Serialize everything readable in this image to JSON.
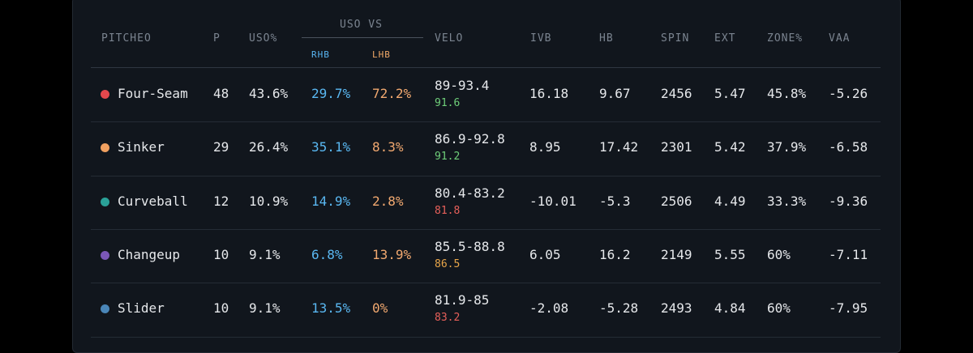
{
  "table": {
    "columns": {
      "pitch": "PITCHEO",
      "p": "P",
      "usage": "USO%",
      "usage_vs": "USO VS",
      "rhb": "RHB",
      "lhb": "LHB",
      "velo": "VELO",
      "ivb": "IVB",
      "hb": "HB",
      "spin": "SPIN",
      "ext": "EXT",
      "zone": "ZONE%",
      "vaa": "VAA"
    },
    "rows": [
      {
        "pitch": "Four-Seam",
        "color": "#e5484d",
        "p": "48",
        "usage": "43.6%",
        "rhb": "29.7%",
        "lhb": "72.2%",
        "velo": "89-93.4",
        "velo_avg": "91.6",
        "velo_avg_color": "#6fcf7a",
        "ivb": "16.18",
        "hb": "9.67",
        "spin": "2456",
        "ext": "5.47",
        "zone": "45.8%",
        "vaa": "-5.26"
      },
      {
        "pitch": "Sinker",
        "color": "#f0a060",
        "p": "29",
        "usage": "26.4%",
        "rhb": "35.1%",
        "lhb": "8.3%",
        "velo": "86.9-92.8",
        "velo_avg": "91.2",
        "velo_avg_color": "#6fcf7a",
        "ivb": "8.95",
        "hb": "17.42",
        "spin": "2301",
        "ext": "5.42",
        "zone": "37.9%",
        "vaa": "-6.58"
      },
      {
        "pitch": "Curveball",
        "color": "#2aa198",
        "p": "12",
        "usage": "10.9%",
        "rhb": "14.9%",
        "lhb": "2.8%",
        "velo": "80.4-83.2",
        "velo_avg": "81.8",
        "velo_avg_color": "#e8605a",
        "ivb": "-10.01",
        "hb": "-5.3",
        "spin": "2506",
        "ext": "4.49",
        "zone": "33.3%",
        "vaa": "-9.36"
      },
      {
        "pitch": "Changeup",
        "color": "#7b57b8",
        "p": "10",
        "usage": "9.1%",
        "rhb": "6.8%",
        "lhb": "13.9%",
        "velo": "85.5-88.8",
        "velo_avg": "86.5",
        "velo_avg_color": "#e8a64a",
        "ivb": "6.05",
        "hb": "16.2",
        "spin": "2149",
        "ext": "5.55",
        "zone": "60%",
        "vaa": "-7.11"
      },
      {
        "pitch": "Slider",
        "color": "#4a86b8",
        "p": "10",
        "usage": "9.1%",
        "rhb": "13.5%",
        "lhb": "0%",
        "velo": "81.9-85",
        "velo_avg": "83.2",
        "velo_avg_color": "#e8605a",
        "ivb": "-2.08",
        "hb": "-5.28",
        "spin": "2493",
        "ext": "4.84",
        "zone": "60%",
        "vaa": "-7.95"
      }
    ]
  }
}
